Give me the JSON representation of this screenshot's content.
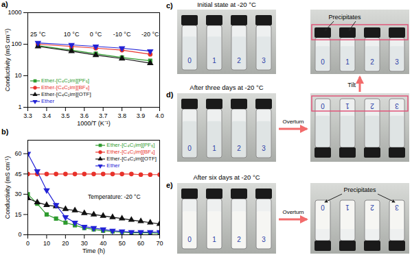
{
  "chart_data": [
    {
      "type": "line",
      "letter": "a)",
      "xlabel": "1000/T (K⁻¹)",
      "ylabel": "Conductivity (mS cm⁻¹)",
      "x": [
        3.354,
        3.532,
        3.661,
        3.8,
        3.95
      ],
      "xlim": [
        3.3,
        4.0
      ],
      "xticks": [
        3.3,
        3.4,
        3.5,
        3.6,
        3.7,
        3.8,
        3.9,
        {
          "value": 4.0,
          "label": "4.0"
        }
      ],
      "ylim": [
        1,
        1000
      ],
      "yticks": [
        1,
        10,
        100,
        1000
      ],
      "log": "y",
      "grid": false,
      "legend": "lower left",
      "annotations": [
        {
          "text": "25 °C",
          "x": 3.354
        },
        {
          "text": "10 °C",
          "x": 3.532
        },
        {
          "text": "0 °C",
          "x": 3.661
        },
        {
          "text": "-10 °C",
          "x": 3.8
        },
        {
          "text": "-20 °C",
          "x": 3.95
        }
      ],
      "series": [
        {
          "name": "Ether-[C₄C₁im][PF₆]",
          "color": "#2e9b2e",
          "marker": "square",
          "values": [
            90,
            65,
            50,
            38,
            30
          ]
        },
        {
          "name": "Ether-[C₄C₁im][BF₄]",
          "color": "#e8322b",
          "marker": "circle",
          "values": [
            100,
            85,
            75,
            65,
            48
          ]
        },
        {
          "name": "Ether-[C₄C₁im][OTF]",
          "color": "#111111",
          "marker": "triangle",
          "values": [
            85,
            60,
            45,
            35,
            25
          ]
        },
        {
          "name": "Ether",
          "color": "#2323d6",
          "marker": "triangle-down",
          "values": [
            110,
            95,
            85,
            75,
            60
          ]
        }
      ]
    },
    {
      "type": "line",
      "letter": "b)",
      "xlabel": "Time (h)",
      "ylabel": "Conductivity (mS cm⁻¹)",
      "x": [
        0,
        5,
        10,
        15,
        20,
        25,
        30,
        35,
        40,
        45,
        50,
        55,
        60,
        65,
        70
      ],
      "xlim": [
        0,
        70
      ],
      "xticks": [
        0,
        10,
        20,
        30,
        40,
        50,
        60,
        70
      ],
      "ylim": [
        0,
        70
      ],
      "yticks": [
        0,
        15,
        30,
        45,
        60
      ],
      "grid": false,
      "legend": "upper right",
      "annotations": [
        {
          "text": "Temperature: -20 °C"
        }
      ],
      "series": [
        {
          "name": "Ether-[C₄C₁im][PF₆]",
          "color": "#2e9b2e",
          "marker": "square",
          "values": [
            30,
            23,
            15,
            12,
            9,
            7,
            5,
            4,
            3,
            2.5,
            2,
            1.5,
            1.5,
            1.5,
            1
          ]
        },
        {
          "name": "Ether-[C₄C₁im][BF₄]",
          "color": "#e8322b",
          "marker": "circle",
          "values": [
            45,
            45,
            45,
            45,
            45,
            45,
            45,
            45,
            45,
            45,
            45,
            45,
            44.5,
            44.5,
            44.5
          ]
        },
        {
          "name": "Ether-[C₄C₁im][OTF]",
          "color": "#111111",
          "marker": "triangle",
          "values": [
            27,
            24,
            22,
            21,
            19,
            18,
            16,
            15,
            14,
            13,
            12,
            11,
            10,
            9,
            8
          ]
        },
        {
          "name": "Ether",
          "color": "#2323d6",
          "marker": "triangle-down",
          "values": [
            60,
            47,
            33,
            22,
            13,
            9,
            6,
            5,
            4,
            3,
            2.5,
            2,
            2,
            2,
            2
          ]
        }
      ]
    }
  ],
  "photos": {
    "vial_labels": [
      "0",
      "1",
      "2",
      "3"
    ],
    "panels": [
      {
        "letter": "c)",
        "caption": "Initial state at -20 °C"
      },
      {
        "letter": "d)",
        "caption": "After three days at -20 °C",
        "action": "Overturn"
      },
      {
        "letter": "e)",
        "caption": "After six days at -20 °C",
        "action": "Overturn",
        "annotation": "Precipitates"
      }
    ],
    "tilted": {
      "action": "Tilt",
      "annotation": "Precipitates"
    }
  }
}
